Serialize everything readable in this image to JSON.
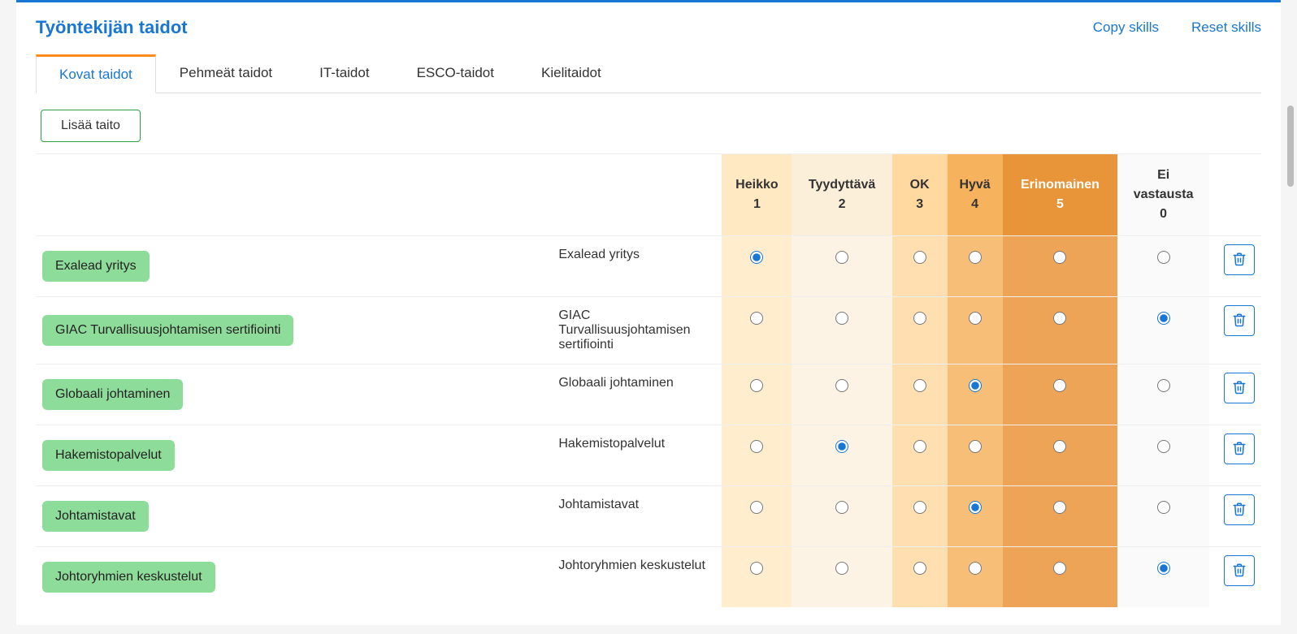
{
  "header": {
    "title": "Työntekijän taidot",
    "copy_skills": "Copy skills",
    "reset_skills": "Reset skills"
  },
  "tabs": [
    {
      "label": "Kovat taidot",
      "active": true
    },
    {
      "label": "Pehmeät taidot",
      "active": false
    },
    {
      "label": "IT-taidot",
      "active": false
    },
    {
      "label": "ESCO-taidot",
      "active": false
    },
    {
      "label": "Kielitaidot",
      "active": false
    }
  ],
  "add_button": "Lisää taito",
  "columns": [
    {
      "label": "Heikko",
      "num": "1",
      "class": "c1"
    },
    {
      "label": "Tyydyttävä",
      "num": "2",
      "class": "c2"
    },
    {
      "label": "OK",
      "num": "3",
      "class": "c3"
    },
    {
      "label": "Hyvä",
      "num": "4",
      "class": "c4"
    },
    {
      "label": "Erinomainen",
      "num": "5",
      "class": "c5"
    },
    {
      "label": "Ei vastausta",
      "num": "0",
      "class": "c0"
    }
  ],
  "column_classes": [
    "c1",
    "c2",
    "c3",
    "c4",
    "c5",
    "c0"
  ],
  "skills": [
    {
      "badge": "Exalead yritys",
      "label": "Exalead yritys",
      "selected": 0
    },
    {
      "badge": "GIAC Turvallisuusjohtamisen sertifiointi",
      "label": "GIAC Turvallisuusjohtamisen sertifiointi",
      "selected": 5
    },
    {
      "badge": "Globaali johtaminen",
      "label": "Globaali johtaminen",
      "selected": 3
    },
    {
      "badge": "Hakemistopalvelut",
      "label": "Hakemistopalvelut",
      "selected": 1
    },
    {
      "badge": "Johtamistavat",
      "label": "Johtamistavat",
      "selected": 3
    },
    {
      "badge": "Johtoryhmien keskustelut",
      "label": "Johtoryhmien keskustelut",
      "selected": 5
    }
  ],
  "colors": {
    "accent": "#1976d2",
    "tab_active_border": "#ff8c1a",
    "badge_bg": "#8edc9a",
    "rating_1": "#ffe9c2",
    "rating_2": "#fcefda",
    "rating_3": "#ffd9a0",
    "rating_4": "#f6b25c",
    "rating_5": "#e8953a",
    "rating_0": "#fafafa"
  }
}
